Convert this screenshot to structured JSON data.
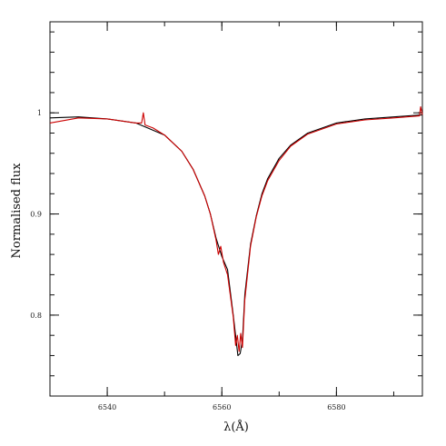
{
  "chart_data": {
    "type": "line",
    "xlabel": "λ(Å)",
    "ylabel": "Normalised flux",
    "xlim": [
      6530,
      6595
    ],
    "ylim": [
      0.72,
      1.09
    ],
    "x_ticks": [
      6540,
      6560,
      6580
    ],
    "x_tick_labels": [
      "6540",
      "6560",
      "6580"
    ],
    "y_ticks": [
      0.8,
      0.9,
      1.0
    ],
    "y_tick_labels": [
      "0.8",
      "0.9",
      "1"
    ],
    "grid": false,
    "series": [
      {
        "name": "",
        "color": "#000000",
        "x": [
          6530,
          6535,
          6540,
          6545,
          6550,
          6553,
          6555,
          6557,
          6558,
          6559,
          6560,
          6561,
          6562,
          6562.5,
          6562.8,
          6563.2,
          6563.6,
          6564,
          6565,
          6566,
          6567,
          6568,
          6570,
          6572,
          6575,
          6580,
          6585,
          6590,
          6595
        ],
        "y": [
          0.995,
          0.996,
          0.994,
          0.99,
          0.978,
          0.962,
          0.944,
          0.918,
          0.9,
          0.876,
          0.858,
          0.845,
          0.8,
          0.775,
          0.76,
          0.762,
          0.775,
          0.82,
          0.87,
          0.898,
          0.92,
          0.935,
          0.955,
          0.968,
          0.98,
          0.99,
          0.994,
          0.996,
          0.998
        ]
      },
      {
        "name": "",
        "color": "#cc0000",
        "x": [
          6530,
          6535,
          6540,
          6545,
          6546,
          6546.3,
          6546.6,
          6548,
          6550,
          6553,
          6555,
          6557,
          6558,
          6559,
          6559.4,
          6559.8,
          6560.3,
          6561,
          6562,
          6562.4,
          6562.7,
          6563,
          6563.3,
          6563.6,
          6564,
          6565,
          6566,
          6567,
          6568,
          6570,
          6572,
          6575,
          6580,
          6585,
          6590,
          6594.5,
          6594.7,
          6595
        ],
        "y": [
          0.99,
          0.995,
          0.994,
          0.99,
          0.99,
          1.0,
          0.988,
          0.985,
          0.978,
          0.962,
          0.944,
          0.918,
          0.9,
          0.874,
          0.86,
          0.868,
          0.852,
          0.84,
          0.798,
          0.77,
          0.78,
          0.764,
          0.782,
          0.768,
          0.815,
          0.868,
          0.897,
          0.918,
          0.933,
          0.953,
          0.967,
          0.979,
          0.989,
          0.993,
          0.995,
          0.997,
          1.006,
          0.998
        ]
      }
    ]
  }
}
